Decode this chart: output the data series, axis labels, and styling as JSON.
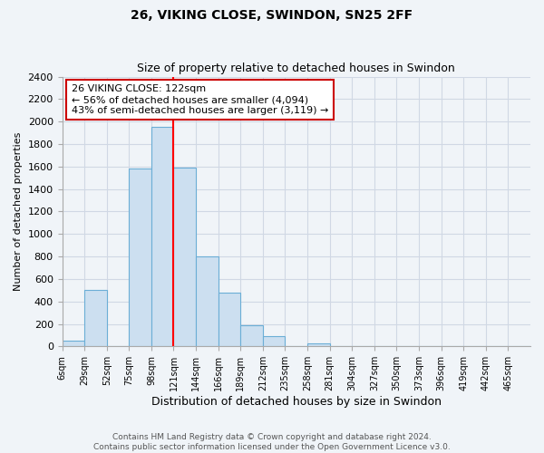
{
  "title1": "26, VIKING CLOSE, SWINDON, SN25 2FF",
  "title2": "Size of property relative to detached houses in Swindon",
  "xlabel": "Distribution of detached houses by size in Swindon",
  "ylabel": "Number of detached properties",
  "bin_labels": [
    "6sqm",
    "29sqm",
    "52sqm",
    "75sqm",
    "98sqm",
    "121sqm",
    "144sqm",
    "166sqm",
    "189sqm",
    "212sqm",
    "235sqm",
    "258sqm",
    "281sqm",
    "304sqm",
    "327sqm",
    "350sqm",
    "373sqm",
    "396sqm",
    "419sqm",
    "442sqm",
    "465sqm"
  ],
  "bar_heights": [
    50,
    500,
    0,
    1580,
    1950,
    1590,
    800,
    480,
    185,
    90,
    0,
    30,
    0,
    0,
    0,
    0,
    0,
    0,
    0,
    0,
    0
  ],
  "bar_color": "#ccdff0",
  "bar_edge_color": "#6baed6",
  "vline_x": 5,
  "vline_color": "red",
  "vline_linewidth": 1.5,
  "ylim": [
    0,
    2400
  ],
  "yticks": [
    0,
    200,
    400,
    600,
    800,
    1000,
    1200,
    1400,
    1600,
    1800,
    2000,
    2200,
    2400
  ],
  "annotation_title": "26 VIKING CLOSE: 122sqm",
  "annotation_line1": "← 56% of detached houses are smaller (4,094)",
  "annotation_line2": "43% of semi-detached houses are larger (3,119) →",
  "annotation_box_color": "#ffffff",
  "annotation_box_edge": "#cc0000",
  "footer1": "Contains HM Land Registry data © Crown copyright and database right 2024.",
  "footer2": "Contains public sector information licensed under the Open Government Licence v3.0.",
  "grid_color": "#d0d8e4",
  "bg_color": "#f0f4f8"
}
